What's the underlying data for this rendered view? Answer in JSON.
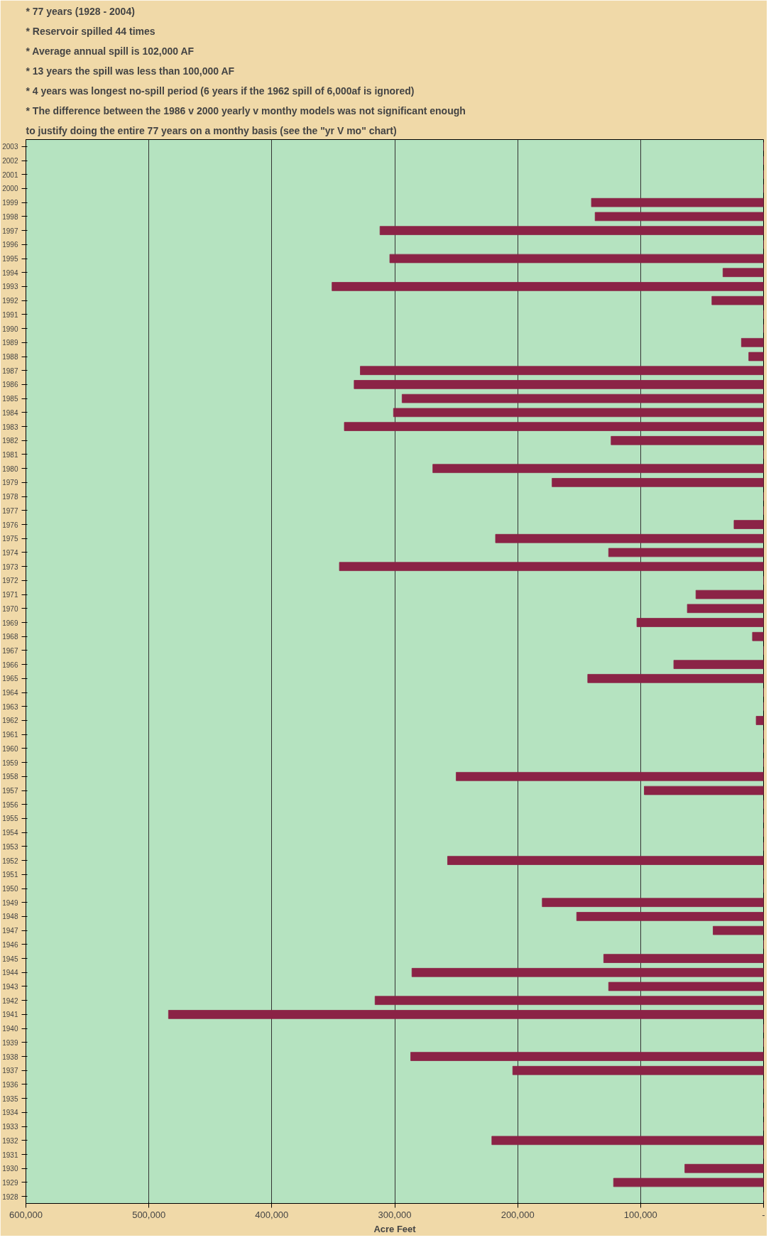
{
  "chart_data": {
    "type": "bar",
    "orientation": "horizontal",
    "xlabel": "Acre Feet",
    "categories": [
      "2003",
      "2002",
      "2001",
      "2000",
      "1999",
      "1998",
      "1997",
      "1996",
      "1995",
      "1994",
      "1993",
      "1992",
      "1991",
      "1990",
      "1989",
      "1988",
      "1987",
      "1986",
      "1985",
      "1984",
      "1983",
      "1982",
      "1981",
      "1980",
      "1979",
      "1978",
      "1977",
      "1976",
      "1975",
      "1974",
      "1973",
      "1972",
      "1971",
      "1970",
      "1969",
      "1968",
      "1967",
      "1966",
      "1965",
      "1964",
      "1963",
      "1962",
      "1961",
      "1960",
      "1959",
      "1958",
      "1957",
      "1956",
      "1955",
      "1954",
      "1953",
      "1952",
      "1951",
      "1950",
      "1949",
      "1948",
      "1947",
      "1946",
      "1945",
      "1944",
      "1943",
      "1942",
      "1941",
      "1940",
      "1939",
      "1938",
      "1937",
      "1936",
      "1935",
      "1934",
      "1933",
      "1932",
      "1931",
      "1930",
      "1929",
      "1928"
    ],
    "values": [
      0,
      0,
      0,
      0,
      140000,
      137000,
      312000,
      0,
      304000,
      33000,
      351000,
      42000,
      0,
      0,
      18000,
      12000,
      328000,
      333000,
      294000,
      301000,
      341000,
      124000,
      0,
      269000,
      172000,
      0,
      0,
      24000,
      218000,
      126000,
      345000,
      0,
      55000,
      62000,
      103000,
      9000,
      0,
      73000,
      143000,
      0,
      0,
      6000,
      0,
      0,
      0,
      250000,
      97000,
      0,
      0,
      0,
      0,
      257000,
      0,
      0,
      180000,
      152000,
      41000,
      0,
      130000,
      286000,
      126000,
      316000,
      484000,
      0,
      0,
      287000,
      204000,
      0,
      0,
      0,
      0,
      221000,
      0,
      64000,
      122000,
      0
    ],
    "color": "#8b2346",
    "xlim": [
      600000,
      0
    ],
    "xticks": [
      {
        "value": 600000,
        "label": "600,000"
      },
      {
        "value": 500000,
        "label": "500,000"
      },
      {
        "value": 400000,
        "label": "400,000"
      },
      {
        "value": 300000,
        "label": "300,000"
      },
      {
        "value": 200000,
        "label": "200,000"
      },
      {
        "value": 100000,
        "label": "100,000"
      },
      {
        "value": 0,
        "label": "-"
      }
    ],
    "grid": "x",
    "annotations": [
      "* 77 years (1928 - 2004)",
      "* Reservoir spilled 44 times",
      "* Average annual spill is 102,000 AF",
      "* 13 years the spill was less than 100,000 AF",
      "* 4 years was longest no-spill period (6 years if the 1962 spill of 6,000af is ignored)",
      "* The difference between the 1986 v 2000 yearly v monthy models was not significant enough",
      "to justify doing the entire 77 years on a monthy basis (see the \"yr V mo\" chart)"
    ]
  }
}
